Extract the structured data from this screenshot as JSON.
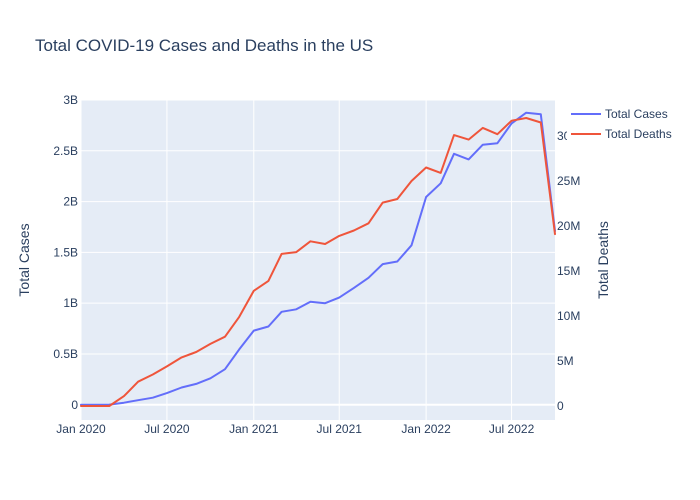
{
  "chart_data": {
    "type": "line",
    "title": "Total COVID-19 Cases and Deaths in the US",
    "xlabel": "",
    "ylabel": "Total Cases",
    "y2label": "Total Deaths",
    "x": [
      "2020-01-01",
      "2020-02-01",
      "2020-03-01",
      "2020-04-01",
      "2020-05-01",
      "2020-06-01",
      "2020-07-01",
      "2020-08-01",
      "2020-09-01",
      "2020-10-01",
      "2020-11-01",
      "2020-12-01",
      "2021-01-01",
      "2021-02-01",
      "2021-03-01",
      "2021-04-01",
      "2021-05-01",
      "2021-06-01",
      "2021-07-01",
      "2021-08-01",
      "2021-09-01",
      "2021-10-01",
      "2021-11-01",
      "2021-12-01",
      "2022-01-01",
      "2022-02-01",
      "2022-03-01",
      "2022-04-01",
      "2022-05-01",
      "2022-06-01",
      "2022-07-01",
      "2022-08-01",
      "2022-09-01",
      "2022-10-01"
    ],
    "series": [
      {
        "name": "Total Cases",
        "axis": "y",
        "color": "#636efa",
        "values": [
          0,
          0,
          2000000,
          20000000,
          45000000,
          70000000,
          115000000,
          170000000,
          205000000,
          260000000,
          350000000,
          545000000,
          730000000,
          770000000,
          915000000,
          940000000,
          1015000000,
          1000000000,
          1055000000,
          1150000000,
          1250000000,
          1385000000,
          1410000000,
          1570000000,
          2045000000,
          2180000000,
          2470000000,
          2415000000,
          2560000000,
          2575000000,
          2770000000,
          2875000000,
          2860000000,
          1710000000
        ]
      },
      {
        "name": "Total Deaths",
        "axis": "y2",
        "color": "#ef553b",
        "values": [
          0,
          0,
          0,
          1100000,
          2700000,
          3500000,
          4400000,
          5400000,
          6000000,
          6900000,
          7700000,
          9900000,
          12800000,
          13900000,
          16900000,
          17100000,
          18300000,
          18000000,
          18900000,
          19500000,
          20300000,
          22600000,
          23000000,
          25000000,
          26500000,
          25900000,
          30100000,
          29600000,
          30900000,
          30200000,
          31700000,
          32000000,
          31500000,
          19100000
        ]
      }
    ],
    "xlim": [
      "2020-01-01",
      "2022-10-01"
    ],
    "x_ticks": [
      "Jan 2020",
      "Jul 2020",
      "Jan 2021",
      "Jul 2021",
      "Jan 2022",
      "Jul 2022"
    ],
    "x_tick_values": [
      "2020-01-01",
      "2020-07-01",
      "2021-01-01",
      "2021-07-01",
      "2022-01-01",
      "2022-07-01"
    ],
    "ylim": [
      -150000000,
      3000000000
    ],
    "y_ticks": [
      0,
      500000000,
      1000000000,
      1500000000,
      2000000000,
      2500000000,
      3000000000
    ],
    "y_tick_labels": [
      "0",
      "0.5B",
      "1B",
      "1.5B",
      "2B",
      "2.5B",
      "3B"
    ],
    "y2lim": [
      -1550000,
      34000000
    ],
    "y2_ticks": [
      0,
      5000000,
      10000000,
      15000000,
      20000000,
      25000000,
      30000000
    ],
    "y2_tick_labels": [
      "0",
      "5M",
      "10M",
      "15M",
      "20M",
      "25M",
      "30M"
    ],
    "grid": true,
    "legend_position": "top-right",
    "plot_background": "#e5ecf6",
    "text_color": "#2a3f5f"
  }
}
